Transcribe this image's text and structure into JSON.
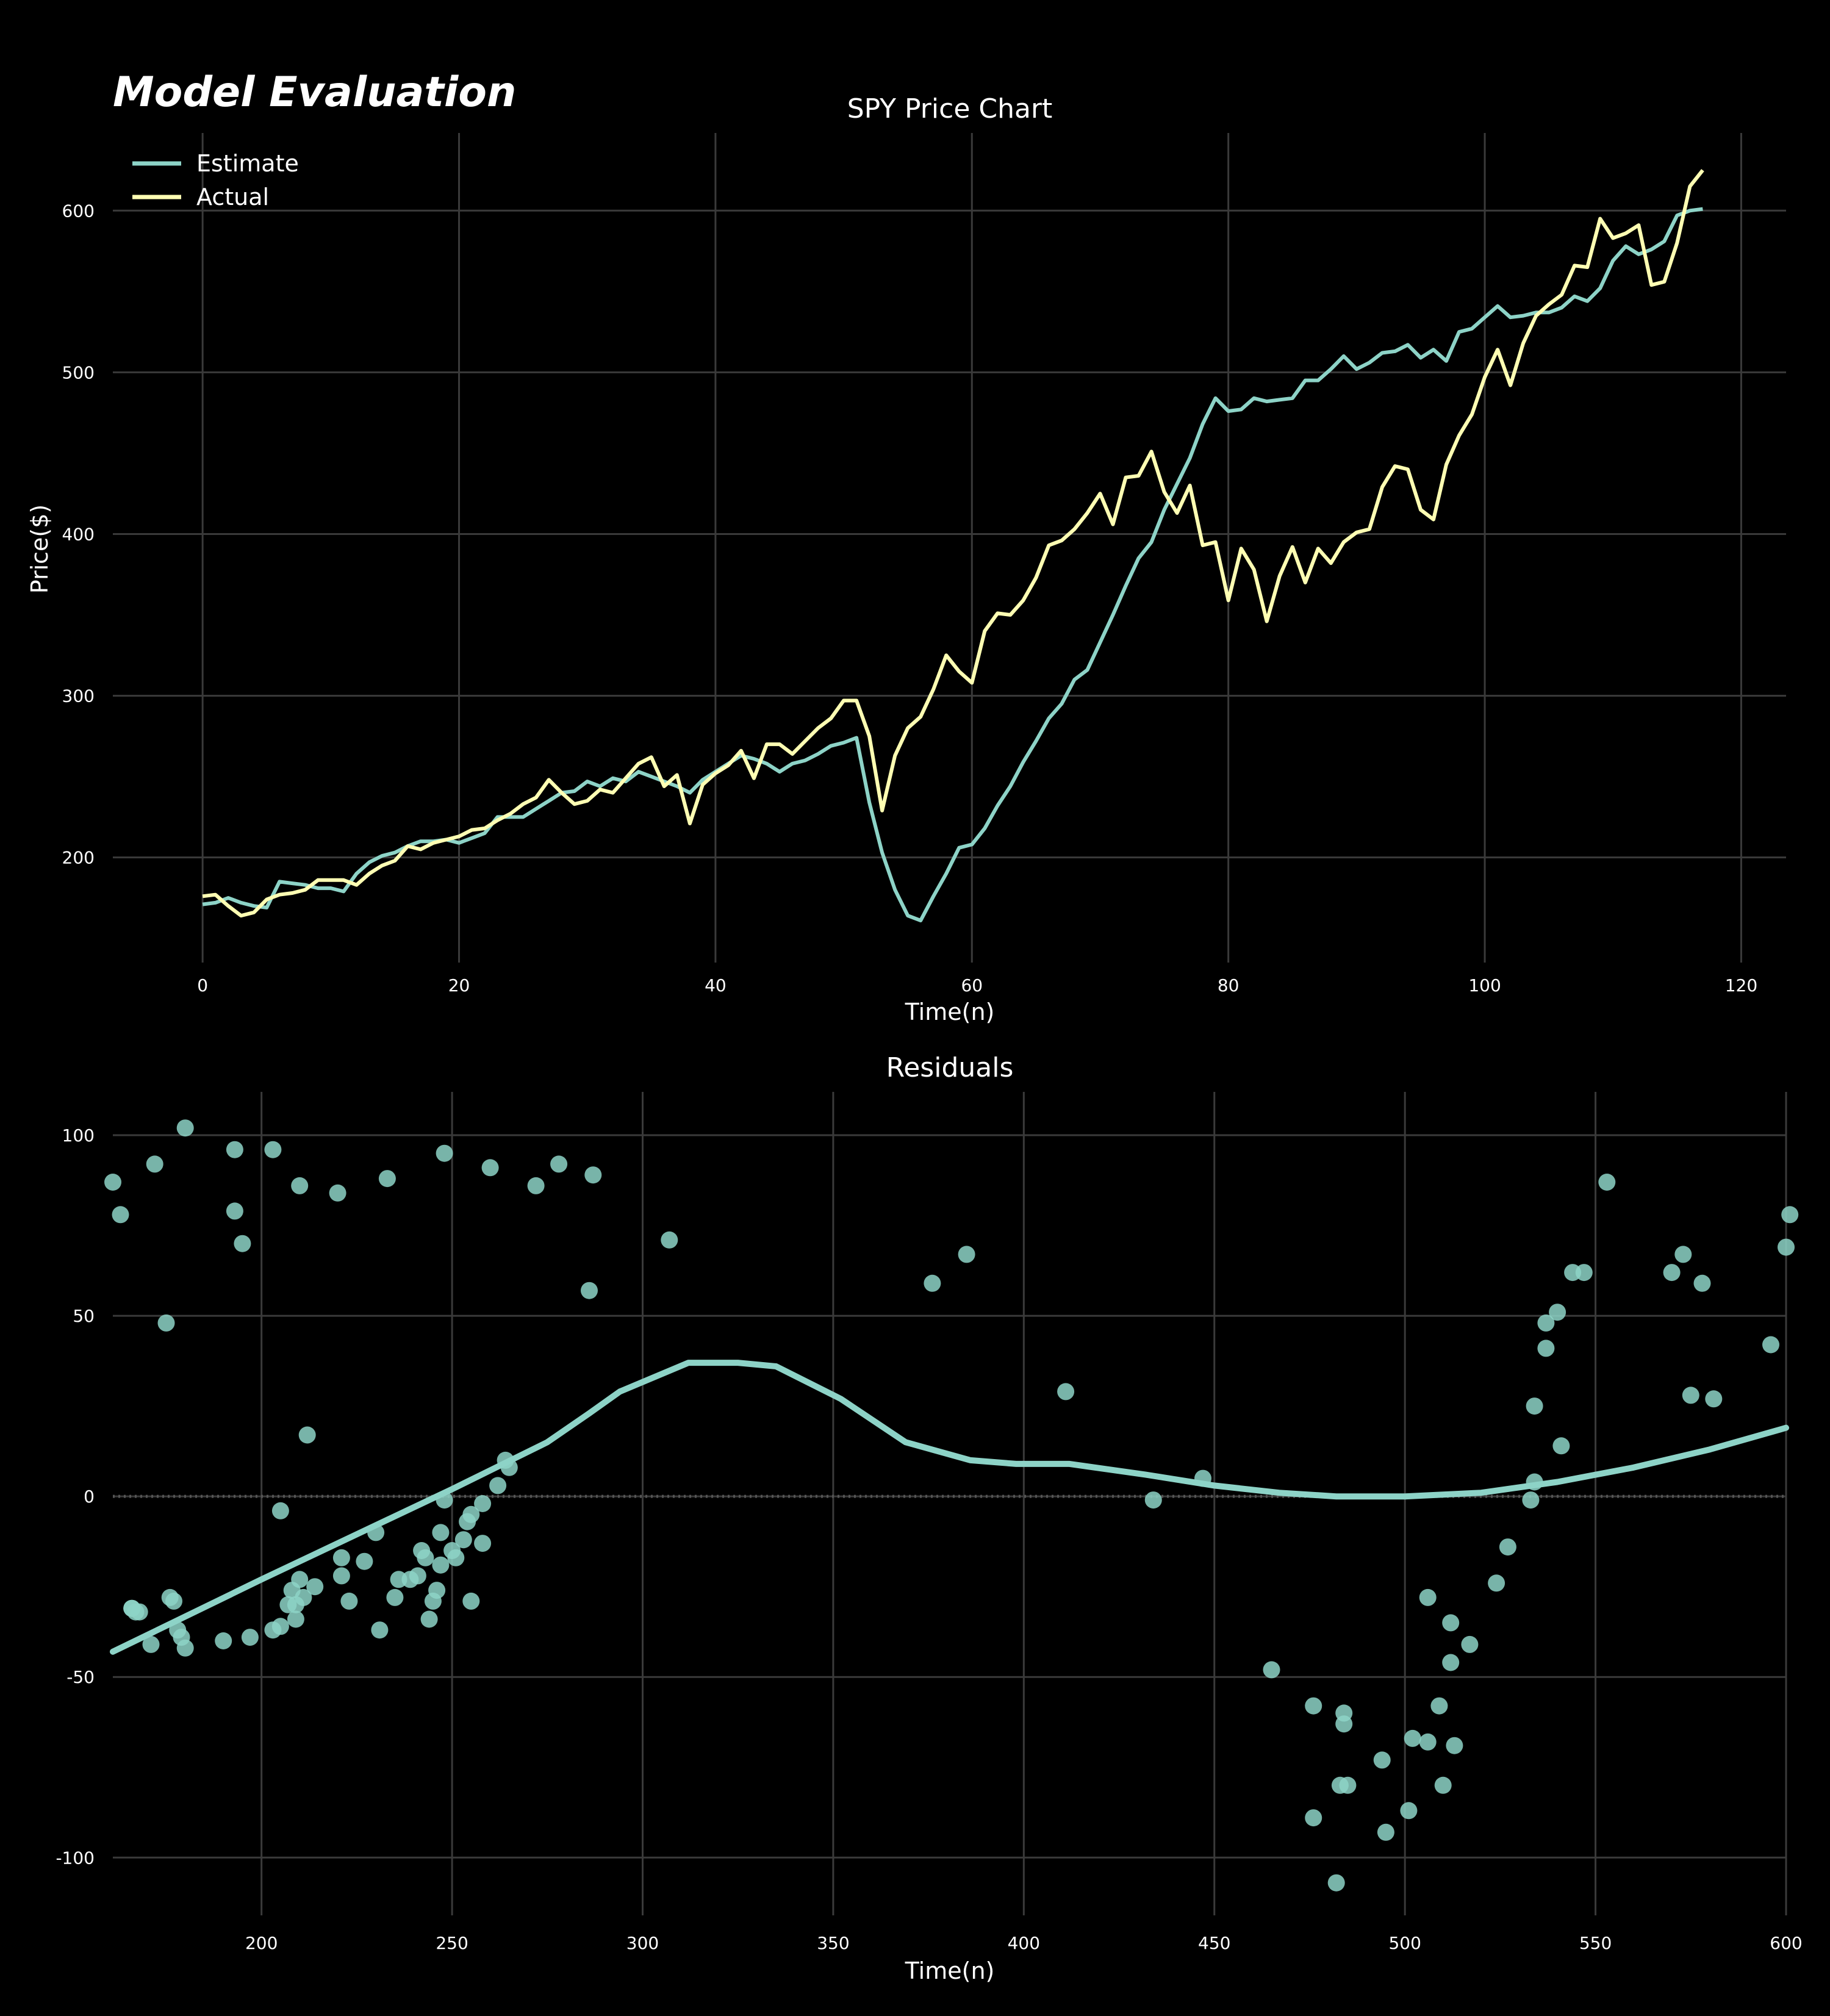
{
  "figure_title": "Model Evaluation",
  "colors": {
    "background": "#000000",
    "estimate": "#8dd3c7",
    "actual": "#ffffb3",
    "grid": "#3a3a3a",
    "text": "#ffffff"
  },
  "chart_data": [
    {
      "type": "line",
      "title": "SPY Price Chart",
      "xlabel": "Time(n)",
      "ylabel": "Price($)",
      "xlim": [
        -7,
        123.5
      ],
      "ylim": [
        135,
        648
      ],
      "xticks": [
        0,
        20,
        40,
        60,
        80,
        100,
        120
      ],
      "yticks": [
        200,
        300,
        400,
        500,
        600
      ],
      "grid": true,
      "legend": "top-left",
      "series": [
        {
          "name": "Estimate",
          "color": "#8dd3c7",
          "values": [
            171,
            172,
            175,
            172,
            170,
            169,
            185,
            184,
            183,
            181,
            181,
            179,
            190,
            197,
            201,
            203,
            207,
            210,
            210,
            211,
            209,
            212,
            215,
            225,
            225,
            225,
            230,
            235,
            240,
            241,
            247,
            244,
            249,
            247,
            253,
            250,
            247,
            244,
            240,
            248,
            253,
            258,
            263,
            261,
            258,
            253,
            258,
            260,
            264,
            269,
            271,
            274,
            234,
            203,
            180,
            164,
            161,
            176,
            190,
            206,
            208,
            218,
            232,
            244,
            259,
            272,
            286,
            295,
            310,
            316,
            333,
            350,
            368,
            385,
            395,
            415,
            431,
            447,
            468,
            484,
            476,
            477,
            484,
            482,
            483,
            484,
            495,
            495,
            502,
            510,
            502,
            506,
            512,
            513,
            517,
            509,
            514,
            507,
            525,
            527,
            534,
            541,
            534,
            535,
            537,
            537,
            540,
            547,
            544,
            552,
            569,
            578,
            573,
            576,
            581,
            597,
            600,
            601
          ]
        },
        {
          "name": "Actual",
          "color": "#ffffb3",
          "values": [
            176,
            177,
            170,
            164,
            166,
            174,
            177,
            178,
            180,
            186,
            186,
            186,
            183,
            190,
            195,
            198,
            207,
            205,
            209,
            211,
            213,
            217,
            218,
            223,
            227,
            233,
            237,
            248,
            240,
            233,
            235,
            242,
            240,
            249,
            258,
            262,
            244,
            251,
            221,
            245,
            252,
            257,
            266,
            249,
            270,
            270,
            264,
            272,
            280,
            286,
            297,
            297,
            275,
            229,
            263,
            280,
            287,
            304,
            325,
            315,
            308,
            340,
            351,
            350,
            359,
            373,
            393,
            396,
            403,
            413,
            425,
            406,
            435,
            436,
            451,
            426,
            413,
            430,
            393,
            395,
            359,
            391,
            378,
            346,
            374,
            392,
            370,
            391,
            382,
            395,
            401,
            403,
            429,
            442,
            440,
            415,
            409,
            443,
            461,
            474,
            497,
            514,
            492,
            518,
            535,
            542,
            548,
            566,
            565,
            595,
            583,
            586,
            591,
            554,
            556,
            580,
            615,
            625
          ]
        }
      ]
    },
    {
      "type": "scatter",
      "title": "Residuals",
      "xlabel": "Time(n)",
      "ylabel": "",
      "xlim": [
        161,
        600
      ],
      "ylim": [
        -116,
        112
      ],
      "xticks": [
        200,
        250,
        300,
        350,
        400,
        450,
        500,
        550,
        600
      ],
      "yticks": [
        100,
        50,
        0,
        -50,
        -100
      ],
      "grid": true,
      "zero_line": true,
      "points": [
        [
          161,
          87
        ],
        [
          163,
          78
        ],
        [
          172,
          92
        ],
        [
          175,
          48
        ],
        [
          180,
          102
        ],
        [
          193,
          96
        ],
        [
          203,
          96
        ],
        [
          210,
          86
        ],
        [
          220,
          84
        ],
        [
          233,
          88
        ],
        [
          248,
          95
        ],
        [
          260,
          91
        ],
        [
          272,
          86
        ],
        [
          278,
          92
        ],
        [
          287,
          89
        ],
        [
          286,
          57
        ],
        [
          307,
          71
        ],
        [
          376,
          59
        ],
        [
          385,
          67
        ],
        [
          411,
          29
        ],
        [
          434,
          -1
        ],
        [
          447,
          5
        ],
        [
          465,
          -48
        ],
        [
          476,
          -58
        ],
        [
          476,
          -89
        ],
        [
          482,
          -107
        ],
        [
          483,
          -80
        ],
        [
          484,
          -63
        ],
        [
          484,
          -60
        ],
        [
          485,
          -80
        ],
        [
          494,
          -73
        ],
        [
          495,
          -93
        ],
        [
          501,
          -87
        ],
        [
          502,
          -67
        ],
        [
          506,
          -28
        ],
        [
          506,
          -68
        ],
        [
          509,
          -58
        ],
        [
          510,
          -80
        ],
        [
          512,
          -46
        ],
        [
          512,
          -35
        ],
        [
          513,
          -69
        ],
        [
          517,
          -41
        ],
        [
          524,
          -24
        ],
        [
          527,
          -14
        ],
        [
          533,
          -1
        ],
        [
          534,
          4
        ],
        [
          534,
          25
        ],
        [
          537,
          48
        ],
        [
          537,
          41
        ],
        [
          540,
          51
        ],
        [
          541,
          14
        ],
        [
          544,
          62
        ],
        [
          547,
          62
        ],
        [
          553,
          87
        ],
        [
          570,
          62
        ],
        [
          573,
          67
        ],
        [
          575,
          28
        ],
        [
          578,
          59
        ],
        [
          581,
          27
        ],
        [
          596,
          42
        ],
        [
          600,
          69
        ],
        [
          601,
          78
        ],
        [
          193,
          79
        ],
        [
          195,
          70
        ],
        [
          212,
          17
        ],
        [
          166,
          -31
        ],
        [
          166,
          -31
        ],
        [
          167,
          -32
        ],
        [
          168,
          -32
        ],
        [
          171,
          -41
        ],
        [
          176,
          -28
        ],
        [
          177,
          -29
        ],
        [
          178,
          -37
        ],
        [
          179,
          -39
        ],
        [
          180,
          -42
        ],
        [
          190,
          -40
        ],
        [
          197,
          -39
        ],
        [
          203,
          -37
        ],
        [
          205,
          -36
        ],
        [
          205,
          -4
        ],
        [
          207,
          -30
        ],
        [
          208,
          -26
        ],
        [
          209,
          -30
        ],
        [
          209,
          -34
        ],
        [
          210,
          -23
        ],
        [
          211,
          -28
        ],
        [
          214,
          -25
        ],
        [
          221,
          -17
        ],
        [
          221,
          -22
        ],
        [
          223,
          -29
        ],
        [
          227,
          -18
        ],
        [
          230,
          -10
        ],
        [
          231,
          -37
        ],
        [
          235,
          -28
        ],
        [
          236,
          -23
        ],
        [
          239,
          -23
        ],
        [
          241,
          -22
        ],
        [
          242,
          -15
        ],
        [
          243,
          -17
        ],
        [
          244,
          -34
        ],
        [
          245,
          -29
        ],
        [
          246,
          -26
        ],
        [
          247,
          -10
        ],
        [
          247,
          -19
        ],
        [
          248,
          -1
        ],
        [
          250,
          -15
        ],
        [
          251,
          -17
        ],
        [
          253,
          -12
        ],
        [
          254,
          -7
        ],
        [
          255,
          -29
        ],
        [
          255,
          -5
        ],
        [
          258,
          -13
        ],
        [
          258,
          -2
        ],
        [
          262,
          3
        ],
        [
          264,
          10
        ],
        [
          265,
          8
        ]
      ],
      "trend": [
        [
          161,
          -43
        ],
        [
          200,
          -23
        ],
        [
          250,
          2
        ],
        [
          275,
          15
        ],
        [
          286,
          23
        ],
        [
          294,
          29
        ],
        [
          312,
          37
        ],
        [
          325,
          37
        ],
        [
          335,
          36
        ],
        [
          352,
          27
        ],
        [
          369,
          15
        ],
        [
          386,
          10
        ],
        [
          398,
          9
        ],
        [
          412,
          9
        ],
        [
          432,
          6
        ],
        [
          450,
          3
        ],
        [
          467,
          1
        ],
        [
          482,
          0
        ],
        [
          500,
          0
        ],
        [
          520,
          1
        ],
        [
          540,
          4
        ],
        [
          560,
          8
        ],
        [
          580,
          13
        ],
        [
          600,
          19
        ]
      ]
    }
  ]
}
